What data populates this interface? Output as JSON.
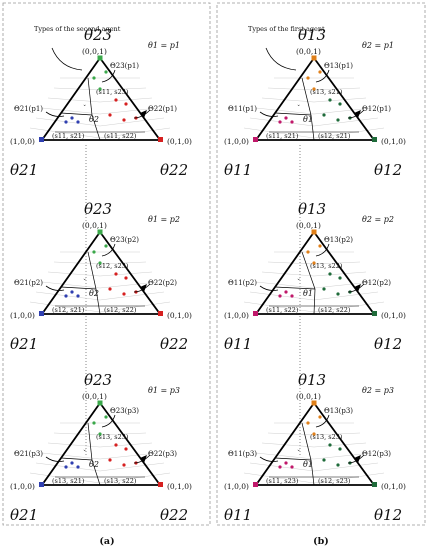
{
  "caption_labels": [
    "(a)",
    "(b)"
  ],
  "panels": [
    {
      "caption": "(a)",
      "note": "Types of the second agent",
      "top_vertex": "θ23",
      "left_vertex": "θ21",
      "right_vertex": "θ22",
      "coord_top": "(0,0,1)",
      "coord_left": "(1,0,0)",
      "coord_right": "(0,1,0)",
      "rows": [
        {
          "param": "θ1 = p1",
          "region_top": "Θ23(p1)",
          "region_left": "Θ21(p1)",
          "region_right": "Θ22(p1)",
          "inner_top": "(s11, s23)",
          "inner_bl": "(s11, s21)",
          "inner_br": "(s11, s22)",
          "mark": "θ2"
        },
        {
          "param": "θ1 = p2",
          "region_top": "Θ23(p2)",
          "region_left": "Θ21(p2)",
          "region_right": "Θ22(p2)",
          "inner_top": "(s12, s23)",
          "inner_bl": "(s12, s21)",
          "inner_br": "(s12, s22)",
          "mark": "θ2"
        },
        {
          "param": "θ1 = p3",
          "region_top": "Θ23(p3)",
          "region_left": "Θ21(p3)",
          "region_right": "Θ22(p3)",
          "inner_top": "(s13, s23)",
          "inner_bl": "(s13, s21)",
          "inner_br": "(s13, s22)",
          "mark": "θ2"
        }
      ]
    },
    {
      "caption": "(b)",
      "note": "Types of the first agent",
      "top_vertex": "θ13",
      "left_vertex": "θ11",
      "right_vertex": "θ12",
      "coord_top": "(0,0,1)",
      "coord_left": "(1,0,0)",
      "coord_right": "(0,1,0)",
      "rows": [
        {
          "param": "θ2 = p1",
          "region_top": "Θ13(p1)",
          "region_left": "Θ11(p1)",
          "region_right": "Θ12(p1)",
          "inner_top": "(s13, s21)",
          "inner_bl": "(s11, s21)",
          "inner_br": "(s12, s21)",
          "mark": "θ1"
        },
        {
          "param": "θ2 = p2",
          "region_top": "Θ13(p2)",
          "region_left": "Θ11(p2)",
          "region_right": "Θ12(p2)",
          "inner_top": "(s13, s22)",
          "inner_bl": "(s11, s22)",
          "inner_br": "(s12, s22)",
          "mark": "θ1"
        },
        {
          "param": "θ2 = p3",
          "region_top": "Θ13(p3)",
          "region_left": "Θ11(p3)",
          "region_right": "Θ12(p3)",
          "inner_top": "(s13, s23)",
          "inner_bl": "(s11, s23)",
          "inner_br": "(s12, s23)",
          "mark": "θ1"
        }
      ]
    }
  ],
  "colors": {
    "green": "#3aa84a",
    "red": "#d62020",
    "blue": "#2f3fb0",
    "orange": "#e0801a",
    "dark_green": "#1f6b3a",
    "magenta": "#c0186a",
    "frame": "#999999"
  }
}
